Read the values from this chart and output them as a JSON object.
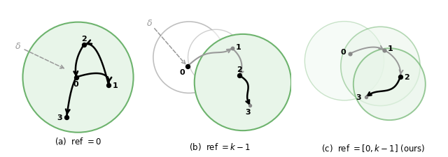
{
  "fig_width": 6.4,
  "fig_height": 2.26,
  "background": "#ffffff",
  "green_fill": "#e8f5e9",
  "green_edge": "#6db36d",
  "gray_edge": "#b0b0b0",
  "black": "#111111",
  "gray_arrow": "#999999",
  "gray_dot": "#888888",
  "caption_a": "(a)  ref $= 0$",
  "caption_b": "(b)  ref $= k-1$",
  "caption_c": "(c)  ref $= [0, k-1]$ (ours)"
}
